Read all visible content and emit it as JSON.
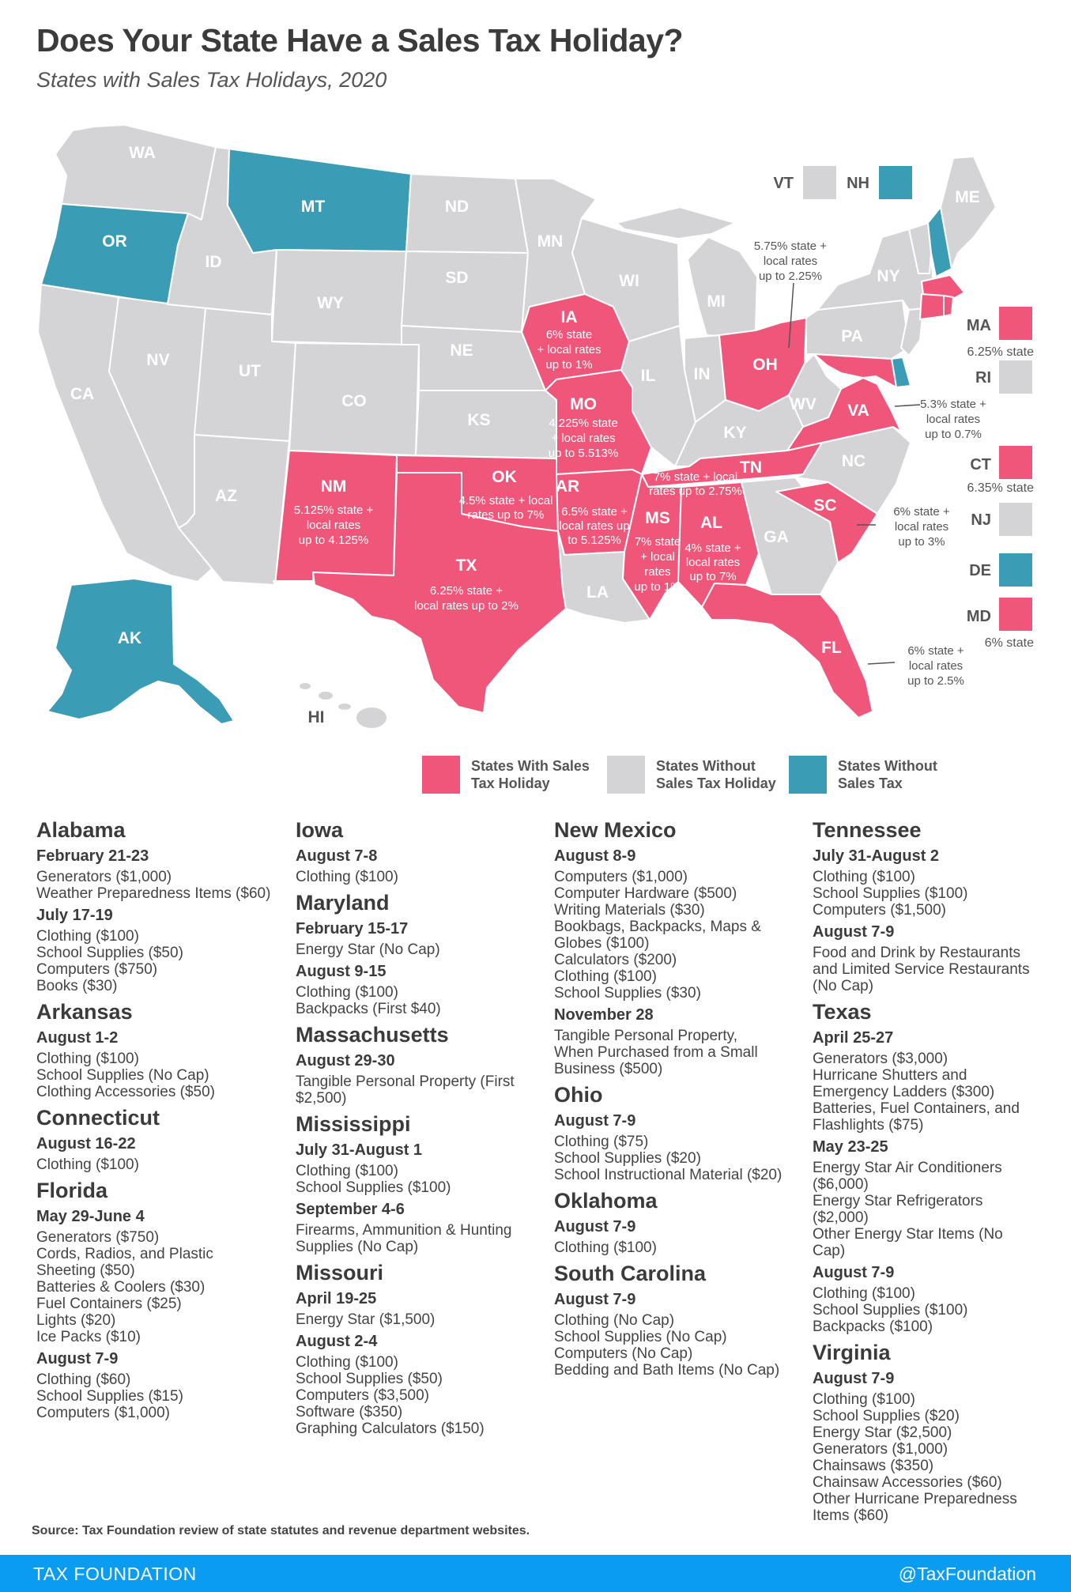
{
  "title": "Does Your State Have a Sales Tax Holiday?",
  "subtitle": "States with Sales Tax Holidays, 2020",
  "colors": {
    "holiday": "#f0567a",
    "no_holiday": "#d4d4d6",
    "no_tax": "#3b9cb5",
    "footer": "#0a9cf0"
  },
  "map": {
    "WA": "WA",
    "OR": "OR",
    "CA": "CA",
    "NV": "NV",
    "ID": "ID",
    "MT": "MT",
    "WY": "WY",
    "UT": "UT",
    "AZ": "AZ",
    "CO": "CO",
    "ND": "ND",
    "SD": "SD",
    "NE": "NE",
    "KS": "KS",
    "MN": "MN",
    "WI": "WI",
    "MI": "MI",
    "IL": "IL",
    "IN": "IN",
    "KY": "KY",
    "WV": "WV",
    "PA": "PA",
    "NY": "NY",
    "ME": "ME",
    "GA": "GA",
    "LA": "LA",
    "NC": "NC",
    "HI": "HI",
    "AK": "AK",
    "IA": "IA",
    "IA_rate": [
      "6% state",
      "+ local rates",
      "up to 1%"
    ],
    "MO": "MO",
    "MO_rate": [
      "4.225% state",
      "+ local rates",
      "up to 5.513%"
    ],
    "OH": "OH",
    "OH_rate": [
      "5.75% state +",
      "local rates",
      "up to 2.25%"
    ],
    "VA": "VA",
    "VA_rate": [
      "5.3% state +",
      "local rates",
      "up to 0.7%"
    ],
    "TN": "TN",
    "TN_rate": [
      "7% state + local",
      "rates up to 2.75%"
    ],
    "NM": "NM",
    "NM_rate": [
      "5.125% state +",
      "local rates",
      "up to 4.125%"
    ],
    "OK": "OK",
    "OK_rate": [
      "4.5% state + local",
      "rates up to 7%"
    ],
    "AR": "AR",
    "AR_rate": [
      "6.5% state +",
      "local rates up",
      "to 5.125%"
    ],
    "MS": "MS",
    "MS_rate": [
      "7% state",
      "+ local",
      "rates",
      "up to 1%"
    ],
    "AL": "AL",
    "AL_rate": [
      "4% state +",
      "local rates",
      "up to 7%"
    ],
    "SC": "SC",
    "SC_rate": [
      "6% state +",
      "local rates",
      "up to 3%"
    ],
    "TX": "TX",
    "TX_rate": [
      "6.25% state +",
      "local rates up to 2%"
    ],
    "FL": "FL",
    "FL_rate": [
      "6% state +",
      "local rates",
      "up to 2.5%"
    ]
  },
  "small_states": {
    "VT": "VT",
    "NH": "NH",
    "MA": "MA",
    "MA_rate": "6.25% state",
    "RI": "RI",
    "CT": "CT",
    "CT_rate": "6.35% state",
    "NJ": "NJ",
    "DE": "DE",
    "MD": "MD",
    "MD_rate": "6% state"
  },
  "legend": {
    "holiday": [
      "States With Sales",
      "Tax Holiday"
    ],
    "no_holiday": [
      "States Without",
      "Sales Tax Holiday"
    ],
    "no_tax": [
      "States Without",
      "Sales Tax"
    ]
  },
  "holidays": {
    "alabama": {
      "name": "Alabama",
      "d1": "February 21-23",
      "d1_items": [
        "Generators ($1,000)",
        "Weather Preparedness Items ($60)"
      ],
      "d2": "July 17-19",
      "d2_items": [
        "Clothing ($100)",
        "School Supplies ($50)",
        "Computers ($750)",
        "Books ($30)"
      ]
    },
    "arkansas": {
      "name": "Arkansas",
      "d1": "August 1-2",
      "d1_items": [
        "Clothing ($100)",
        "School Supplies (No Cap)",
        "Clothing Accessories ($50)"
      ]
    },
    "connecticut": {
      "name": "Connecticut",
      "d1": "August 16-22",
      "d1_items": [
        "Clothing ($100)"
      ]
    },
    "florida": {
      "name": "Florida",
      "d1": "May 29-June 4",
      "d1_items": [
        "Generators ($750)",
        "Cords, Radios, and Plastic",
        "Sheeting ($50)",
        "Batteries & Coolers ($30)",
        "Fuel Containers ($25)",
        "Lights ($20)",
        "Ice Packs ($10)"
      ],
      "d2": "August 7-9",
      "d2_items": [
        "Clothing ($60)",
        "School Supplies ($15)",
        "Computers ($1,000)"
      ]
    },
    "iowa": {
      "name": "Iowa",
      "d1": "August 7-8",
      "d1_items": [
        "Clothing ($100)"
      ]
    },
    "maryland": {
      "name": "Maryland",
      "d1": "February 15-17",
      "d1_items": [
        "Energy Star (No Cap)"
      ],
      "d2": "August 9-15",
      "d2_items": [
        "Clothing ($100)",
        "Backpacks (First $40)"
      ]
    },
    "massachusetts": {
      "name": "Massachusetts",
      "d1": "August 29-30",
      "d1_items": [
        "Tangible Personal Property (First",
        "$2,500)"
      ]
    },
    "mississippi": {
      "name": "Mississippi",
      "d1": "July 31-August 1",
      "d1_items": [
        "Clothing ($100)",
        "School Supplies ($100)"
      ],
      "d2": "September 4-6",
      "d2_items": [
        "Firearms, Ammunition & Hunting",
        "Supplies (No Cap)"
      ]
    },
    "missouri": {
      "name": "Missouri",
      "d1": "April 19-25",
      "d1_items": [
        "Energy Star ($1,500)"
      ],
      "d2": "August 2-4",
      "d2_items": [
        "Clothing ($100)",
        "School Supplies ($50)",
        "Computers ($3,500)",
        "Software ($350)",
        "Graphing Calculators ($150)"
      ]
    },
    "new_mexico": {
      "name": "New Mexico",
      "d1": "August 8-9",
      "d1_items": [
        "Computers ($1,000)",
        "Computer Hardware ($500)",
        "Writing Materials ($30)",
        "Bookbags, Backpacks, Maps &",
        "Globes ($100)",
        "Calculators ($200)",
        "Clothing ($100)",
        "School Supplies ($30)"
      ],
      "d2": "November 28",
      "d2_items": [
        "Tangible Personal Property,",
        "When Purchased from a Small",
        "Business ($500)"
      ]
    },
    "ohio": {
      "name": "Ohio",
      "d1": "August 7-9",
      "d1_items": [
        "Clothing ($75)",
        "School Supplies ($20)",
        "School Instructional Material ($20)"
      ]
    },
    "oklahoma": {
      "name": "Oklahoma",
      "d1": "August 7-9",
      "d1_items": [
        "Clothing ($100)"
      ]
    },
    "south_carolina": {
      "name": "South Carolina",
      "d1": "August 7-9",
      "d1_items": [
        "Clothing (No Cap)",
        "School Supplies (No Cap)",
        "Computers (No Cap)",
        "Bedding and Bath Items (No Cap)"
      ]
    },
    "tennessee": {
      "name": "Tennessee",
      "d1": "July 31-August 2",
      "d1_items": [
        "Clothing ($100)",
        "School Supplies ($100)",
        "Computers ($1,500)"
      ],
      "d2": "August 7-9",
      "d2_items": [
        "Food and Drink by Restaurants",
        "and Limited Service Restaurants",
        "(No Cap)"
      ]
    },
    "texas": {
      "name": "Texas",
      "d1": "April 25-27",
      "d1_items": [
        "Generators ($3,000)",
        "Hurricane Shutters and",
        "Emergency Ladders ($300)",
        "Batteries, Fuel Containers, and",
        "Flashlights ($75)"
      ],
      "d2": "May 23-25",
      "d2_items": [
        "Energy Star Air Conditioners",
        "($6,000)",
        "Energy Star Refrigerators",
        "($2,000)",
        "Other Energy Star Items (No",
        "Cap)"
      ],
      "d3": "August 7-9",
      "d3_items": [
        "Clothing ($100)",
        "School Supplies ($100)",
        "Backpacks ($100)"
      ]
    },
    "virginia": {
      "name": "Virginia",
      "d1": "August 7-9",
      "d1_items": [
        "Clothing ($100)",
        "School Supplies ($20)",
        "Energy Star ($2,500)",
        "Generators ($1,000)",
        "Chainsaws ($350)",
        "Chainsaw Accessories ($60)",
        "Other Hurricane Preparedness",
        "Items ($60)"
      ]
    }
  },
  "source": "Source: Tax Foundation review of state statutes and revenue department websites.",
  "footer": {
    "left": "TAX FOUNDATION",
    "right": "@TaxFoundation"
  }
}
